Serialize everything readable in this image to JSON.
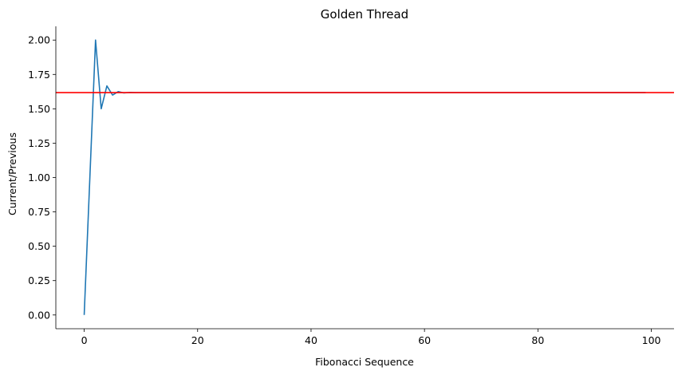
{
  "chart_data": {
    "type": "line",
    "title": "Golden Thread",
    "xlabel": "Fibonacci Sequence",
    "ylabel": "Current/Previous",
    "xlim": [
      -5,
      104
    ],
    "ylim": [
      -0.1,
      2.1
    ],
    "xticks": [
      0,
      20,
      40,
      60,
      80,
      100
    ],
    "yticks": [
      "0.00",
      "0.25",
      "0.50",
      "0.75",
      "1.00",
      "1.25",
      "1.50",
      "1.75",
      "2.00"
    ],
    "grid": false,
    "series": [
      {
        "color": "#1f77b4",
        "x": [
          0,
          1,
          2,
          3,
          4,
          5,
          6,
          7,
          8,
          9,
          10,
          99
        ],
        "y": [
          0,
          1.0,
          2.0,
          1.5,
          1.6667,
          1.6,
          1.625,
          1.6154,
          1.619,
          1.6176,
          1.6182,
          1.618
        ]
      }
    ],
    "reference_lines": [
      {
        "orientation": "horizontal",
        "y": 1.618,
        "color": "#ff0000"
      }
    ]
  }
}
